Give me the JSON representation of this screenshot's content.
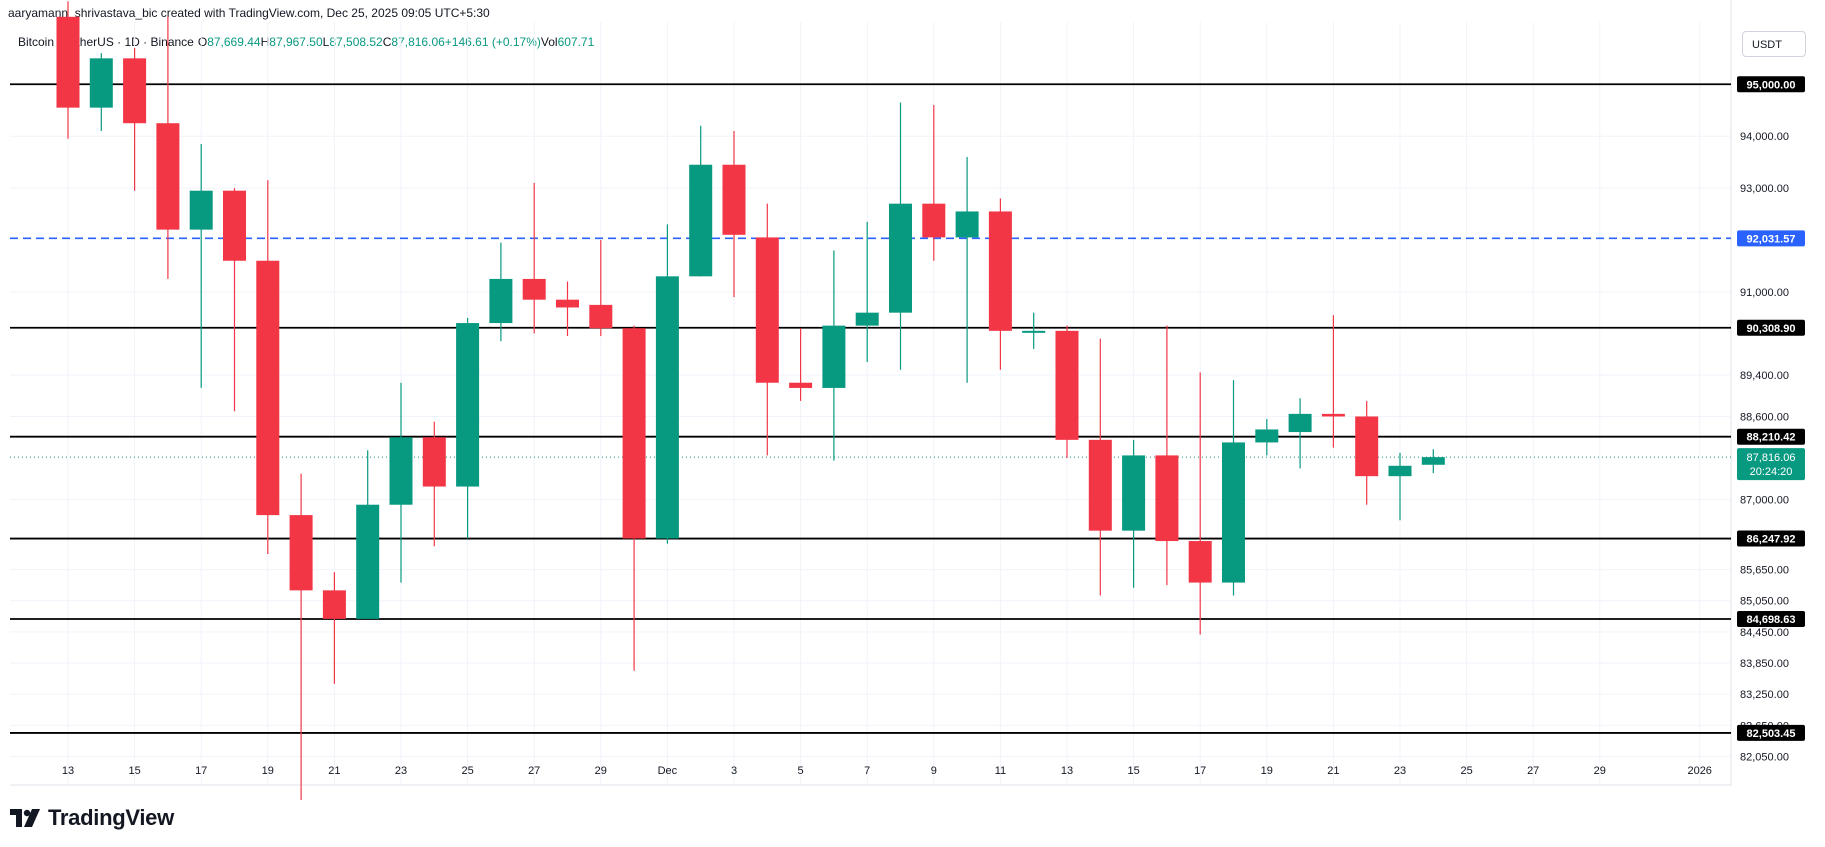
{
  "header": {
    "attribution": "aaryamann_shrivastava_bic created with TradingView.com, Dec 25, 2025 09:05 UTC+5:30"
  },
  "legend": {
    "symbol": "Bitcoin / TetherUS · 1D · Binance",
    "open_key": "O",
    "open": "87,669.44",
    "high_key": "H",
    "high": "87,967.50",
    "low_key": "L",
    "low": "87,508.52",
    "close_key": "C",
    "close": "87,816.06",
    "change": "+146.61 (+0.17%)",
    "vol_key": "Vol",
    "vol": "607.71"
  },
  "currency_button": "USDT",
  "branding": "TradingView",
  "colors": {
    "up": "#089981",
    "down": "#f23645",
    "dashed_line": "#2962ff",
    "grid": "#f0f3fa"
  },
  "chart_data": {
    "type": "candlestick",
    "ylim": [
      81500,
      96200
    ],
    "y_ticks": [
      {
        "value": 94000,
        "label": "94,000.00"
      },
      {
        "value": 93000,
        "label": "93,000.00"
      },
      {
        "value": 91000,
        "label": "91,000.00"
      },
      {
        "value": 89400,
        "label": "89,400.00"
      },
      {
        "value": 88600,
        "label": "88,600.00"
      },
      {
        "value": 87000,
        "label": "87,000.00"
      },
      {
        "value": 85650,
        "label": "85,650.00"
      },
      {
        "value": 85050,
        "label": "85,050.00"
      },
      {
        "value": 84450,
        "label": "84,450.00"
      },
      {
        "value": 83850,
        "label": "83,850.00"
      },
      {
        "value": 83250,
        "label": "83,250.00"
      },
      {
        "value": 82650,
        "label": "82,650.00"
      },
      {
        "value": 82050,
        "label": "82,050.00"
      }
    ],
    "x_ticks": [
      {
        "day": 0,
        "label": "13"
      },
      {
        "day": 2,
        "label": "15"
      },
      {
        "day": 4,
        "label": "17"
      },
      {
        "day": 6,
        "label": "19"
      },
      {
        "day": 8,
        "label": "21"
      },
      {
        "day": 10,
        "label": "23"
      },
      {
        "day": 12,
        "label": "25"
      },
      {
        "day": 14,
        "label": "27"
      },
      {
        "day": 16,
        "label": "29"
      },
      {
        "day": 18,
        "label": "Dec"
      },
      {
        "day": 20,
        "label": "3"
      },
      {
        "day": 22,
        "label": "5"
      },
      {
        "day": 24,
        "label": "7"
      },
      {
        "day": 26,
        "label": "9"
      },
      {
        "day": 28,
        "label": "11"
      },
      {
        "day": 30,
        "label": "13"
      },
      {
        "day": 32,
        "label": "15"
      },
      {
        "day": 34,
        "label": "17"
      },
      {
        "day": 36,
        "label": "19"
      },
      {
        "day": 38,
        "label": "21"
      },
      {
        "day": 40,
        "label": "23"
      },
      {
        "day": 42,
        "label": "25"
      },
      {
        "day": 44,
        "label": "27"
      },
      {
        "day": 46,
        "label": "29"
      },
      {
        "day": 49,
        "label": "2026"
      }
    ],
    "horizontal_levels": [
      {
        "value": 95000.0,
        "label": "95,000.00",
        "style": "solid"
      },
      {
        "value": 92031.57,
        "label": "92,031.57",
        "style": "dashed"
      },
      {
        "value": 90308.9,
        "label": "90,308.90",
        "style": "solid"
      },
      {
        "value": 88210.42,
        "label": "88,210.42",
        "style": "solid"
      },
      {
        "value": 86247.92,
        "label": "86,247.92",
        "style": "solid"
      },
      {
        "value": 84698.63,
        "label": "84,698.63",
        "style": "solid"
      },
      {
        "value": 82503.45,
        "label": "82,503.45",
        "style": "solid"
      }
    ],
    "current_price": {
      "value": 87816.06,
      "label": "87,816.06",
      "countdown": "20:24:20"
    },
    "candles": [
      {
        "day": 0,
        "o": 96300,
        "h": 96600,
        "l": 93950,
        "c": 94550
      },
      {
        "day": 1,
        "o": 94550,
        "h": 95600,
        "l": 94100,
        "c": 95500
      },
      {
        "day": 2,
        "o": 95500,
        "h": 95700,
        "l": 92950,
        "c": 94250
      },
      {
        "day": 3,
        "o": 94250,
        "h": 96300,
        "l": 91250,
        "c": 92200
      },
      {
        "day": 4,
        "o": 92200,
        "h": 93850,
        "l": 89150,
        "c": 92950
      },
      {
        "day": 5,
        "o": 92950,
        "h": 93000,
        "l": 88700,
        "c": 91600
      },
      {
        "day": 6,
        "o": 91600,
        "h": 93150,
        "l": 85950,
        "c": 86700
      },
      {
        "day": 7,
        "o": 86700,
        "h": 87500,
        "l": 80600,
        "c": 85250
      },
      {
        "day": 8,
        "o": 85250,
        "h": 85600,
        "l": 83450,
        "c": 84700
      },
      {
        "day": 9,
        "o": 84700,
        "h": 87950,
        "l": 84700,
        "c": 86900
      },
      {
        "day": 10,
        "o": 86900,
        "h": 89250,
        "l": 85400,
        "c": 88200
      },
      {
        "day": 11,
        "o": 88200,
        "h": 88500,
        "l": 86100,
        "c": 87250
      },
      {
        "day": 12,
        "o": 87250,
        "h": 90500,
        "l": 86250,
        "c": 90400
      },
      {
        "day": 13,
        "o": 90400,
        "h": 91950,
        "l": 90050,
        "c": 91250
      },
      {
        "day": 14,
        "o": 91250,
        "h": 93100,
        "l": 90200,
        "c": 90850
      },
      {
        "day": 15,
        "o": 90850,
        "h": 91200,
        "l": 90150,
        "c": 90700
      },
      {
        "day": 16,
        "o": 90750,
        "h": 92000,
        "l": 90150,
        "c": 90300
      },
      {
        "day": 17,
        "o": 90300,
        "h": 90350,
        "l": 83700,
        "c": 86250
      },
      {
        "day": 18,
        "o": 86250,
        "h": 92300,
        "l": 86150,
        "c": 91300
      },
      {
        "day": 19,
        "o": 91300,
        "h": 94200,
        "l": 91300,
        "c": 93450
      },
      {
        "day": 20,
        "o": 93450,
        "h": 94100,
        "l": 90900,
        "c": 92100
      },
      {
        "day": 21,
        "o": 92050,
        "h": 92700,
        "l": 87850,
        "c": 89250
      },
      {
        "day": 22,
        "o": 89250,
        "h": 90300,
        "l": 88900,
        "c": 89150
      },
      {
        "day": 23,
        "o": 89150,
        "h": 91800,
        "l": 87750,
        "c": 90350
      },
      {
        "day": 24,
        "o": 90350,
        "h": 92350,
        "l": 89650,
        "c": 90600
      },
      {
        "day": 25,
        "o": 90600,
        "h": 94650,
        "l": 89500,
        "c": 92700
      },
      {
        "day": 26,
        "o": 92700,
        "h": 94600,
        "l": 91600,
        "c": 92050
      },
      {
        "day": 27,
        "o": 92050,
        "h": 93600,
        "l": 89250,
        "c": 92550
      },
      {
        "day": 28,
        "o": 92550,
        "h": 92800,
        "l": 89500,
        "c": 90250
      },
      {
        "day": 29,
        "o": 90250,
        "h": 90600,
        "l": 89900,
        "c": 90250
      },
      {
        "day": 30,
        "o": 90250,
        "h": 90350,
        "l": 87800,
        "c": 88150
      },
      {
        "day": 31,
        "o": 88150,
        "h": 90100,
        "l": 85150,
        "c": 86400
      },
      {
        "day": 32,
        "o": 86400,
        "h": 88150,
        "l": 85300,
        "c": 87850
      },
      {
        "day": 33,
        "o": 87850,
        "h": 90350,
        "l": 85350,
        "c": 86200
      },
      {
        "day": 34,
        "o": 86200,
        "h": 89450,
        "l": 84400,
        "c": 85400
      },
      {
        "day": 35,
        "o": 85400,
        "h": 89300,
        "l": 85150,
        "c": 88100
      },
      {
        "day": 36,
        "o": 88100,
        "h": 88550,
        "l": 87850,
        "c": 88350
      },
      {
        "day": 37,
        "o": 88300,
        "h": 88950,
        "l": 87600,
        "c": 88650
      },
      {
        "day": 38,
        "o": 88650,
        "h": 90550,
        "l": 88000,
        "c": 88600
      },
      {
        "day": 39,
        "o": 88600,
        "h": 88900,
        "l": 86900,
        "c": 87450
      },
      {
        "day": 40,
        "o": 87450,
        "h": 87900,
        "l": 86600,
        "c": 87650
      },
      {
        "day": 41,
        "o": 87669.44,
        "h": 87967.5,
        "l": 87508.52,
        "c": 87816.06
      }
    ]
  }
}
